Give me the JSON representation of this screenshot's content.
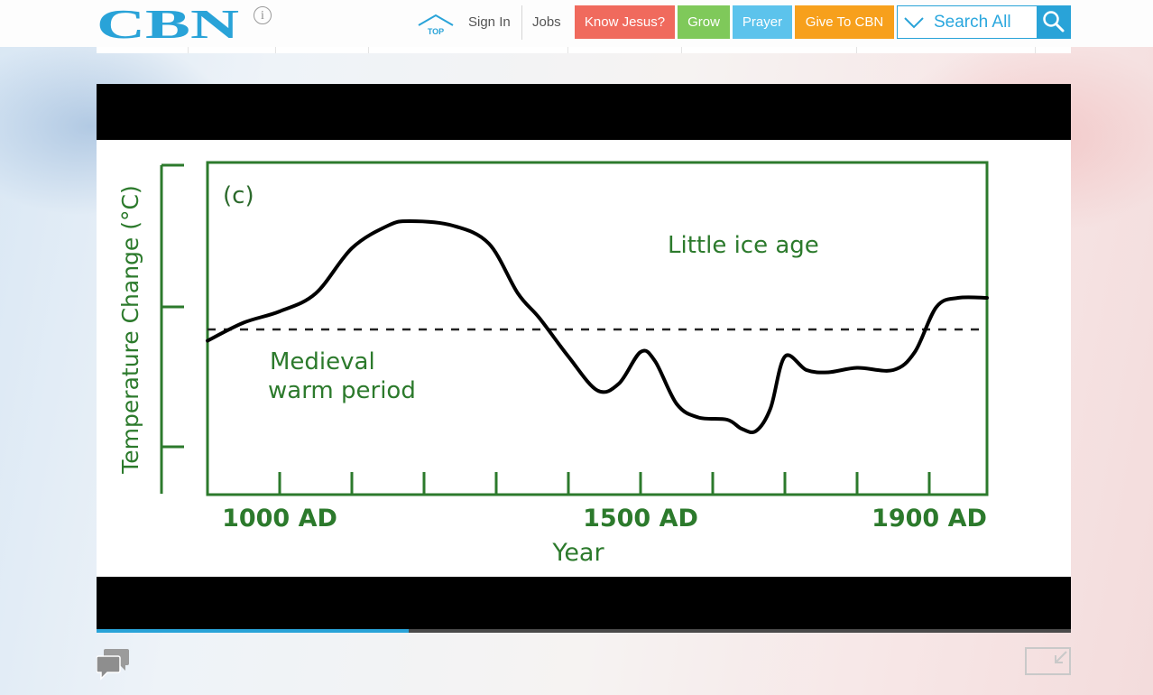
{
  "colors": {
    "brand": "#29a3d8",
    "know_jesus": "#f06a5d",
    "grow": "#7fc95a",
    "prayer": "#5cc3ec",
    "give": "#f7a01c",
    "chart_line": "#000000",
    "chart_frame": "#2c7a2c",
    "chart_text": "#2c7a2c"
  },
  "header": {
    "logo_text": "CBN",
    "info_icon": "i",
    "top_label": "TOP",
    "sign_in": "Sign In",
    "jobs": "Jobs",
    "buttons": [
      {
        "label": "Know Jesus?"
      },
      {
        "label": "Grow"
      },
      {
        "label": "Prayer"
      },
      {
        "label": "Give To CBN"
      }
    ],
    "search": {
      "placeholder": "Search All"
    }
  },
  "player": {
    "progress": 0.32
  },
  "chart_data": {
    "type": "line",
    "panel_label": "(c)",
    "xlabel": "Year",
    "ylabel": "Temperature Change (°C)",
    "x_ticks": [
      "1000 AD",
      "1500 AD",
      "1900 AD"
    ],
    "xlim": [
      900,
      1980
    ],
    "annotations": [
      "Medieval",
      "warm period",
      "Little ice age"
    ],
    "baseline": "dashed",
    "series": [
      {
        "x": [
          900,
          950,
          1000,
          1050,
          1100,
          1150,
          1180,
          1240,
          1290,
          1330,
          1360,
          1400,
          1440,
          1470,
          1500,
          1520,
          1550,
          1580,
          1620,
          1640,
          1660,
          1680,
          1700,
          1730,
          1760,
          1800,
          1850,
          1880,
          1910,
          1940,
          1980
        ],
        "y": [
          -0.05,
          0.03,
          0.08,
          0.16,
          0.36,
          0.46,
          0.48,
          0.46,
          0.38,
          0.16,
          0.05,
          -0.12,
          -0.27,
          -0.24,
          -0.1,
          -0.14,
          -0.33,
          -0.39,
          -0.4,
          -0.44,
          -0.45,
          -0.35,
          -0.12,
          -0.18,
          -0.19,
          -0.17,
          -0.18,
          -0.1,
          0.1,
          0.14,
          0.14
        ]
      }
    ]
  }
}
